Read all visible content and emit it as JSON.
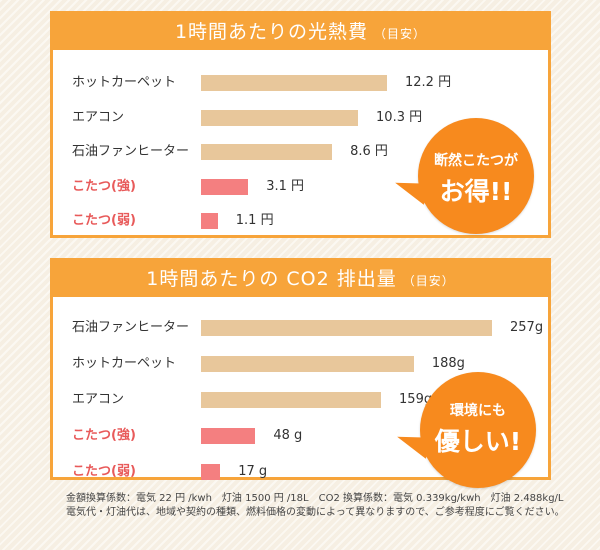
{
  "panels": [
    {
      "title": "1時間あたりの光熱費",
      "subtitle": "（目安）",
      "bubble": {
        "line1": "断然こたつが",
        "line2": "お得!!"
      }
    },
    {
      "title": "1時間あたりの CO2 排出量",
      "subtitle": "（目安）",
      "bubble": {
        "line1": "環境にも",
        "line2": "優しい!"
      }
    }
  ],
  "chart_data": [
    {
      "type": "bar",
      "orientation": "horizontal",
      "title": "1時間あたりの光熱費（目安）",
      "categories": [
        "ホットカーペット",
        "エアコン",
        "石油ファンヒーター",
        "こたつ(強)",
        "こたつ(弱)"
      ],
      "values": [
        12.2,
        10.3,
        8.6,
        3.1,
        1.1
      ],
      "value_labels": [
        "12.2 円",
        "10.3 円",
        "8.6 円",
        "3.1 円",
        "1.1 円"
      ],
      "highlight": [
        false,
        false,
        false,
        true,
        true
      ],
      "xmax": 12.2,
      "colors": {
        "normal": "#e8c79b",
        "highlight": "#f47f80"
      }
    },
    {
      "type": "bar",
      "orientation": "horizontal",
      "title": "1時間あたりの CO2 排出量（目安）",
      "categories": [
        "石油ファンヒーター",
        "ホットカーペット",
        "エアコン",
        "こたつ(強)",
        "こたつ(弱)"
      ],
      "values": [
        257,
        188,
        159,
        48,
        17
      ],
      "value_labels": [
        "257g",
        "188g",
        "159g",
        "48 g",
        "17 g"
      ],
      "highlight": [
        false,
        false,
        false,
        true,
        true
      ],
      "xmax": 257,
      "colors": {
        "normal": "#e8c79b",
        "highlight": "#f47f80"
      }
    }
  ],
  "footer": {
    "line1": "金額換算係数：電気 22 円 /kwh　灯油 1500 円 /18L　CO2 換算係数：電気 0.339kg/kwh　灯油 2.488kg/L",
    "line2": "電気代・灯油代は、地域や契約の種類、燃料価格の変動によって異なりますので、ご参考程度にご覧ください。"
  }
}
